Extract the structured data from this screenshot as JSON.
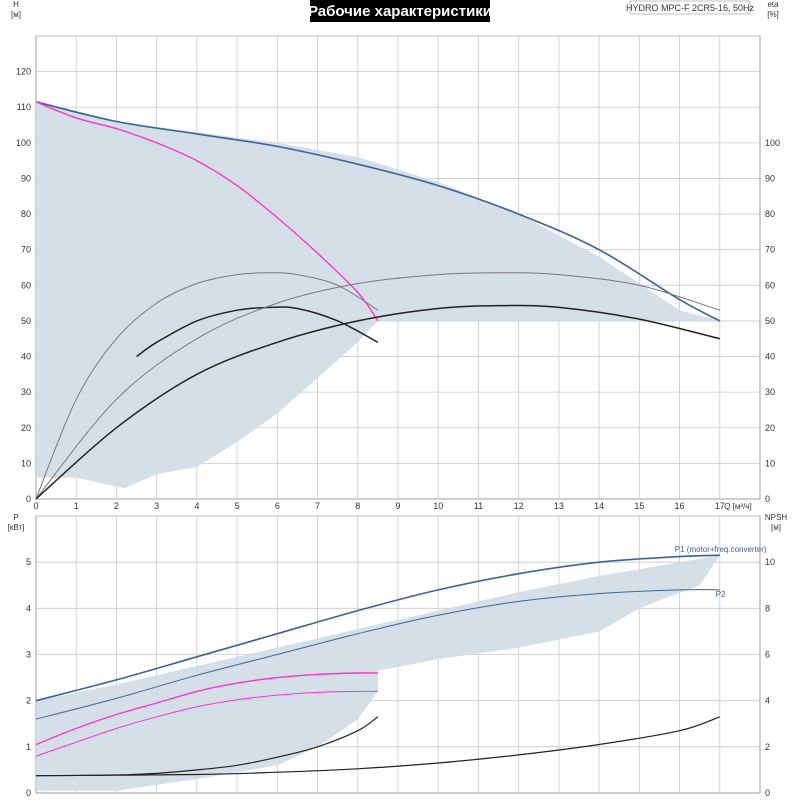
{
  "header": {
    "title": "Рабочие характеристики",
    "model": "HYDRO MPC-F 2CR5-16, 50Hz"
  },
  "colors": {
    "envelope": "#d0dbe5",
    "main_curve": "#3a6496",
    "pink_curve": "#ff33cc",
    "eff_curve": "#222222",
    "grid": "#c8c8c8"
  },
  "chart_data": [
    {
      "type": "line",
      "name": "top",
      "xlabel": "Q [м³/ч]",
      "ylabel_left": "H",
      "ylabel_left_unit": "[м]",
      "ylabel_right": "eta",
      "ylabel_right_unit": "[%]",
      "xlim": [
        0,
        18
      ],
      "ylim": [
        0,
        130
      ],
      "y_right_lim": [
        0,
        130
      ],
      "grid": true,
      "x_ticks": [
        "0",
        "1",
        "2",
        "3",
        "4",
        "5",
        "6",
        "7",
        "8",
        "9",
        "10",
        "11",
        "12",
        "13",
        "14",
        "15",
        "16",
        "17"
      ],
      "y_left_ticks": [
        "0",
        "10",
        "20",
        "30",
        "40",
        "50",
        "60",
        "70",
        "80",
        "90",
        "100",
        "110",
        "120"
      ],
      "y_right_ticks": [
        "0",
        "10",
        "20",
        "30",
        "40",
        "50",
        "60",
        "70",
        "80",
        "90",
        "100"
      ],
      "envelope": [
        [
          0,
          112
        ],
        [
          2,
          106
        ],
        [
          4,
          103
        ],
        [
          6,
          100
        ],
        [
          8,
          96
        ],
        [
          10,
          89
        ],
        [
          12,
          80
        ],
        [
          14,
          68
        ],
        [
          16,
          53
        ],
        [
          17,
          50
        ],
        [
          16,
          50
        ],
        [
          12,
          50
        ],
        [
          9,
          50
        ],
        [
          8.5,
          50
        ],
        [
          8,
          44
        ],
        [
          7,
          34
        ],
        [
          6,
          24
        ],
        [
          5,
          16
        ],
        [
          4,
          9
        ],
        [
          3,
          7
        ],
        [
          2.2,
          3
        ],
        [
          1,
          6
        ],
        [
          0,
          6
        ]
      ],
      "series": [
        {
          "role": "head-2-pumps",
          "axis": "left",
          "color": "main_curve",
          "width": 1.6,
          "points": [
            [
              0,
              111.5
            ],
            [
              2,
              106
            ],
            [
              4,
              102.5
            ],
            [
              6,
              99
            ],
            [
              8,
              94
            ],
            [
              10,
              88
            ],
            [
              12,
              80
            ],
            [
              14,
              70
            ],
            [
              16,
              56
            ],
            [
              17,
              50
            ]
          ]
        },
        {
          "role": "head-1-pump",
          "axis": "left",
          "color": "pink_curve",
          "width": 1.4,
          "points": [
            [
              0,
              111.5
            ],
            [
              1,
              107
            ],
            [
              2,
              104
            ],
            [
              3,
              100
            ],
            [
              4,
              95
            ],
            [
              5,
              88
            ],
            [
              6,
              79
            ],
            [
              7,
              69
            ],
            [
              8,
              58
            ],
            [
              8.5,
              50
            ]
          ]
        },
        {
          "role": "eta-grey-1",
          "axis": "right",
          "color": "#777777",
          "width": 1,
          "points": [
            [
              0,
              0
            ],
            [
              1,
              28
            ],
            [
              2,
              45
            ],
            [
              3,
              55
            ],
            [
              4,
              60.5
            ],
            [
              5,
              63
            ],
            [
              5.8,
              63.5
            ],
            [
              6.5,
              63
            ],
            [
              7.5,
              60
            ],
            [
              8.5,
              53
            ]
          ]
        },
        {
          "role": "eta-dark-1",
          "axis": "right",
          "color": "eff_curve",
          "width": 1.5,
          "points": [
            [
              2.5,
              40
            ],
            [
              3,
              44
            ],
            [
              4,
              50
            ],
            [
              5,
              53
            ],
            [
              5.8,
              53.8
            ],
            [
              6.5,
              53.5
            ],
            [
              7.5,
              50
            ],
            [
              8.5,
              44
            ]
          ]
        },
        {
          "role": "eta-grey-2",
          "axis": "right",
          "color": "#777777",
          "width": 1,
          "points": [
            [
              0,
              0
            ],
            [
              2,
              28
            ],
            [
              4,
              45
            ],
            [
              6,
              55
            ],
            [
              8,
              60.5
            ],
            [
              10,
              63
            ],
            [
              11.6,
              63.5
            ],
            [
              13,
              63
            ],
            [
              15,
              60
            ],
            [
              17,
              53
            ]
          ]
        },
        {
          "role": "eta-dark-2",
          "axis": "right",
          "color": "eff_curve",
          "width": 1.5,
          "points": [
            [
              0,
              0
            ],
            [
              2,
              20
            ],
            [
              4,
              35
            ],
            [
              6,
              44
            ],
            [
              8,
              50
            ],
            [
              10,
              53.5
            ],
            [
              11.6,
              54.3
            ],
            [
              13,
              53.8
            ],
            [
              15,
              50.5
            ],
            [
              17,
              45
            ]
          ]
        }
      ]
    },
    {
      "type": "line",
      "name": "bottom",
      "ylabel_left": "P",
      "ylabel_left_unit": "[кВт]",
      "ylabel_right": "NPSH",
      "ylabel_right_unit": "[м]",
      "xlim": [
        0,
        18
      ],
      "ylim": [
        0,
        6
      ],
      "y_right_lim": [
        0,
        12
      ],
      "grid": true,
      "y_left_ticks": [
        "0",
        "1",
        "2",
        "3",
        "4",
        "5"
      ],
      "y_right_ticks": [
        "0",
        "2",
        "4",
        "6",
        "8",
        "10"
      ],
      "envelope": [
        [
          0,
          2.0
        ],
        [
          2,
          2.35
        ],
        [
          4,
          2.75
        ],
        [
          6,
          3.15
        ],
        [
          8,
          3.55
        ],
        [
          10,
          3.95
        ],
        [
          12,
          4.35
        ],
        [
          14,
          4.7
        ],
        [
          16,
          5.0
        ],
        [
          17,
          5.15
        ],
        [
          16.5,
          4.5
        ],
        [
          15,
          4.0
        ],
        [
          14,
          3.5
        ],
        [
          12,
          3.15
        ],
        [
          10,
          2.9
        ],
        [
          8.5,
          2.65
        ],
        [
          8.5,
          2.2
        ],
        [
          8,
          1.6
        ],
        [
          7,
          1.0
        ],
        [
          6,
          0.6
        ],
        [
          4,
          0.3
        ],
        [
          2,
          0.05
        ],
        [
          0,
          0.05
        ]
      ],
      "series": [
        {
          "role": "P1-2-pumps",
          "label": "P1 (motor+freq.converter)",
          "axis": "left",
          "color": "main_curve",
          "width": 1.6,
          "points": [
            [
              0,
              2.0
            ],
            [
              2,
              2.45
            ],
            [
              4,
              2.95
            ],
            [
              6,
              3.45
            ],
            [
              8,
              3.95
            ],
            [
              10,
              4.4
            ],
            [
              12,
              4.75
            ],
            [
              14,
              5.0
            ],
            [
              16,
              5.12
            ],
            [
              17,
              5.15
            ]
          ]
        },
        {
          "role": "P2-2-pumps",
          "label": "P2",
          "axis": "left",
          "color": "main_curve",
          "width": 1,
          "points": [
            [
              0,
              1.6
            ],
            [
              2,
              2.05
            ],
            [
              4,
              2.55
            ],
            [
              6,
              3.0
            ],
            [
              8,
              3.45
            ],
            [
              10,
              3.85
            ],
            [
              12,
              4.15
            ],
            [
              14,
              4.32
            ],
            [
              16,
              4.4
            ],
            [
              17,
              4.4
            ]
          ]
        },
        {
          "role": "P1-1-pump",
          "axis": "left",
          "color": "pink_curve",
          "width": 1.4,
          "points": [
            [
              0,
              1.05
            ],
            [
              1,
              1.4
            ],
            [
              2,
              1.7
            ],
            [
              3,
              1.95
            ],
            [
              4,
              2.2
            ],
            [
              5,
              2.38
            ],
            [
              6,
              2.5
            ],
            [
              7,
              2.57
            ],
            [
              8,
              2.6
            ],
            [
              8.5,
              2.6
            ]
          ]
        },
        {
          "role": "P2-1-pump",
          "axis": "left",
          "color": "pink_curve",
          "width": 1,
          "points": [
            [
              0,
              0.8
            ],
            [
              1,
              1.1
            ],
            [
              2,
              1.4
            ],
            [
              3,
              1.65
            ],
            [
              4,
              1.87
            ],
            [
              5,
              2.02
            ],
            [
              6,
              2.12
            ],
            [
              7,
              2.18
            ],
            [
              8,
              2.2
            ],
            [
              8.5,
              2.2
            ]
          ]
        },
        {
          "role": "npsh-1-pump",
          "axis": "right",
          "color": "eff_curve",
          "width": 1.2,
          "points": [
            [
              0,
              0.75
            ],
            [
              2,
              0.78
            ],
            [
              3,
              0.85
            ],
            [
              4,
              1.0
            ],
            [
              5,
              1.2
            ],
            [
              6,
              1.55
            ],
            [
              7,
              2.0
            ],
            [
              8,
              2.7
            ],
            [
              8.5,
              3.3
            ]
          ]
        },
        {
          "role": "npsh-2-pumps",
          "axis": "right",
          "color": "eff_curve",
          "width": 1.2,
          "points": [
            [
              0,
              0.75
            ],
            [
              4,
              0.8
            ],
            [
              6,
              0.9
            ],
            [
              8,
              1.05
            ],
            [
              10,
              1.3
            ],
            [
              12,
              1.65
            ],
            [
              14,
              2.1
            ],
            [
              16,
              2.7
            ],
            [
              17,
              3.3
            ]
          ]
        }
      ]
    }
  ]
}
